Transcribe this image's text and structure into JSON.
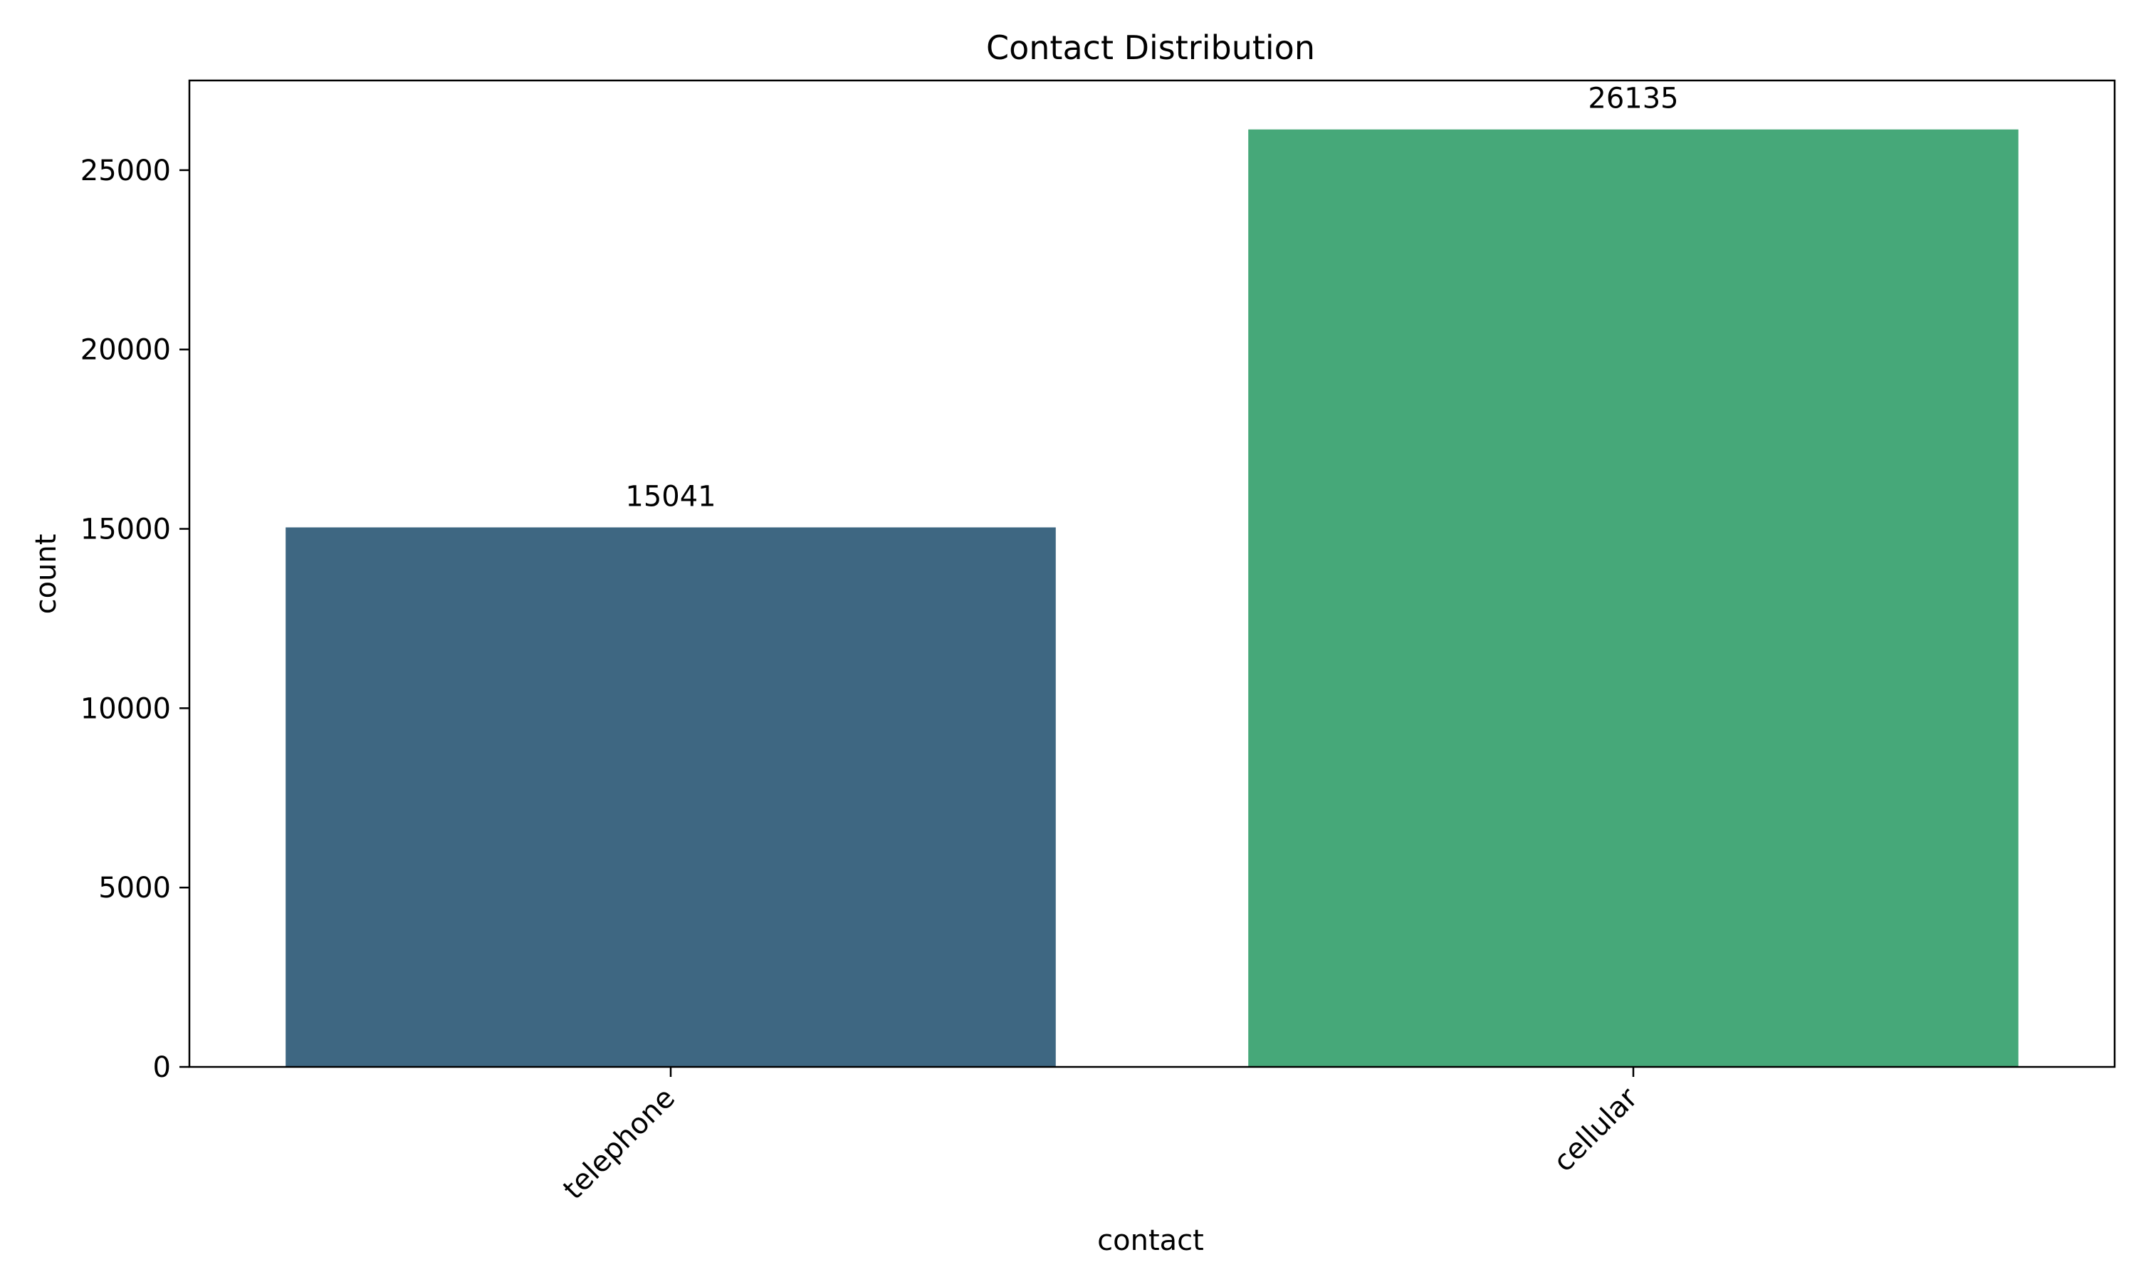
{
  "chart_data": {
    "type": "bar",
    "title": "Contact Distribution",
    "xlabel": "contact",
    "ylabel": "count",
    "categories": [
      "telephone",
      "cellular"
    ],
    "values": [
      15041,
      26135
    ],
    "data_labels": [
      "15041",
      "26135"
    ],
    "ylim": [
      0,
      27500
    ],
    "yticks": [
      0,
      5000,
      10000,
      15000,
      20000,
      25000
    ],
    "ytick_labels": [
      "0",
      "5000",
      "10000",
      "15000",
      "20000",
      "25000"
    ],
    "colors": [
      "#3e6782",
      "#46a879"
    ],
    "grid": false,
    "legend": "none"
  }
}
